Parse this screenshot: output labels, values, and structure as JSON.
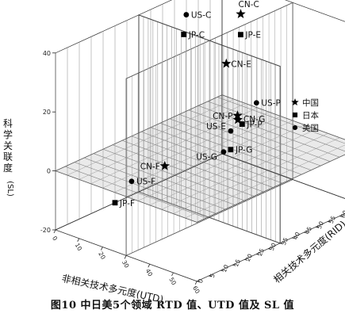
{
  "chart_data": {
    "type": "scatter",
    "dimensions": "3d",
    "axes": {
      "x": {
        "label": "非相关技术多元度(UTD)",
        "range": [
          0,
          60
        ],
        "ticks": [
          "0",
          "10",
          "20",
          "30",
          "40",
          "50",
          "60"
        ]
      },
      "y": {
        "label": "相关技术多元度(RID)",
        "range": [
          0,
          70
        ],
        "ticks": [
          "0",
          "5",
          "10",
          "15",
          "20",
          "25",
          "30",
          "35",
          "40",
          "45",
          "50",
          "55",
          "60",
          "65",
          "70"
        ]
      },
      "z": {
        "label_chars": [
          "科",
          "学",
          "关",
          "联",
          "度"
        ],
        "label_tail": "(SL)",
        "range": [
          -20,
          40
        ],
        "ticks": [
          "-20",
          "0",
          "20",
          "40"
        ]
      }
    },
    "legend": {
      "placement": "right",
      "entries": [
        {
          "marker": "star",
          "label": "中国"
        },
        {
          "marker": "square",
          "label": "日本"
        },
        {
          "marker": "circle",
          "label": "美国"
        }
      ]
    },
    "points": [
      {
        "label": "CN-C",
        "country": "中国",
        "marker": "star",
        "x": 16,
        "y": 62,
        "z": 35
      },
      {
        "label": "JP-E",
        "country": "日本",
        "marker": "square",
        "x": 19,
        "y": 59,
        "z": 30
      },
      {
        "label": "US-C",
        "country": "美国",
        "marker": "circle",
        "x": 5,
        "y": 50,
        "z": 36
      },
      {
        "label": "JP-C",
        "country": "日本",
        "marker": "square",
        "x": 7,
        "y": 47,
        "z": 31
      },
      {
        "label": "CN-E",
        "country": "中国",
        "marker": "star",
        "x": 23,
        "y": 49,
        "z": 25
      },
      {
        "label": "US-P",
        "country": "美国",
        "marker": "circle",
        "x": 55,
        "y": 30,
        "z": 28
      },
      {
        "label": "CN-P",
        "country": "中国",
        "marker": "star",
        "x": 51,
        "y": 26,
        "z": 24
      },
      {
        "label": "JP-P",
        "country": "日本",
        "marker": "square",
        "x": 55,
        "y": 24,
        "z": 23
      },
      {
        "label": "US-E",
        "country": "美国",
        "marker": "circle",
        "x": 36,
        "y": 38,
        "z": 10
      },
      {
        "label": "CN-G",
        "country": "中国",
        "marker": "star",
        "x": 38,
        "y": 39,
        "z": 14
      },
      {
        "label": "US-G",
        "country": "美国",
        "marker": "circle",
        "x": 36,
        "y": 35,
        "z": 4
      },
      {
        "label": "JP-G",
        "country": "日本",
        "marker": "square",
        "x": 38,
        "y": 36,
        "z": 5
      },
      {
        "label": "CN-F",
        "country": "中国",
        "marker": "star",
        "x": 8,
        "y": 38,
        "z": -10
      },
      {
        "label": "US-F",
        "country": "美国",
        "marker": "circle",
        "x": 2,
        "y": 30,
        "z": -14
      },
      {
        "label": "JP-F",
        "country": "日本",
        "marker": "square",
        "x": 0,
        "y": 25,
        "z": -20
      }
    ],
    "grid": true
  },
  "caption": "图10   中日美5个领域 RTD 值、UTD 值及 SL 值"
}
